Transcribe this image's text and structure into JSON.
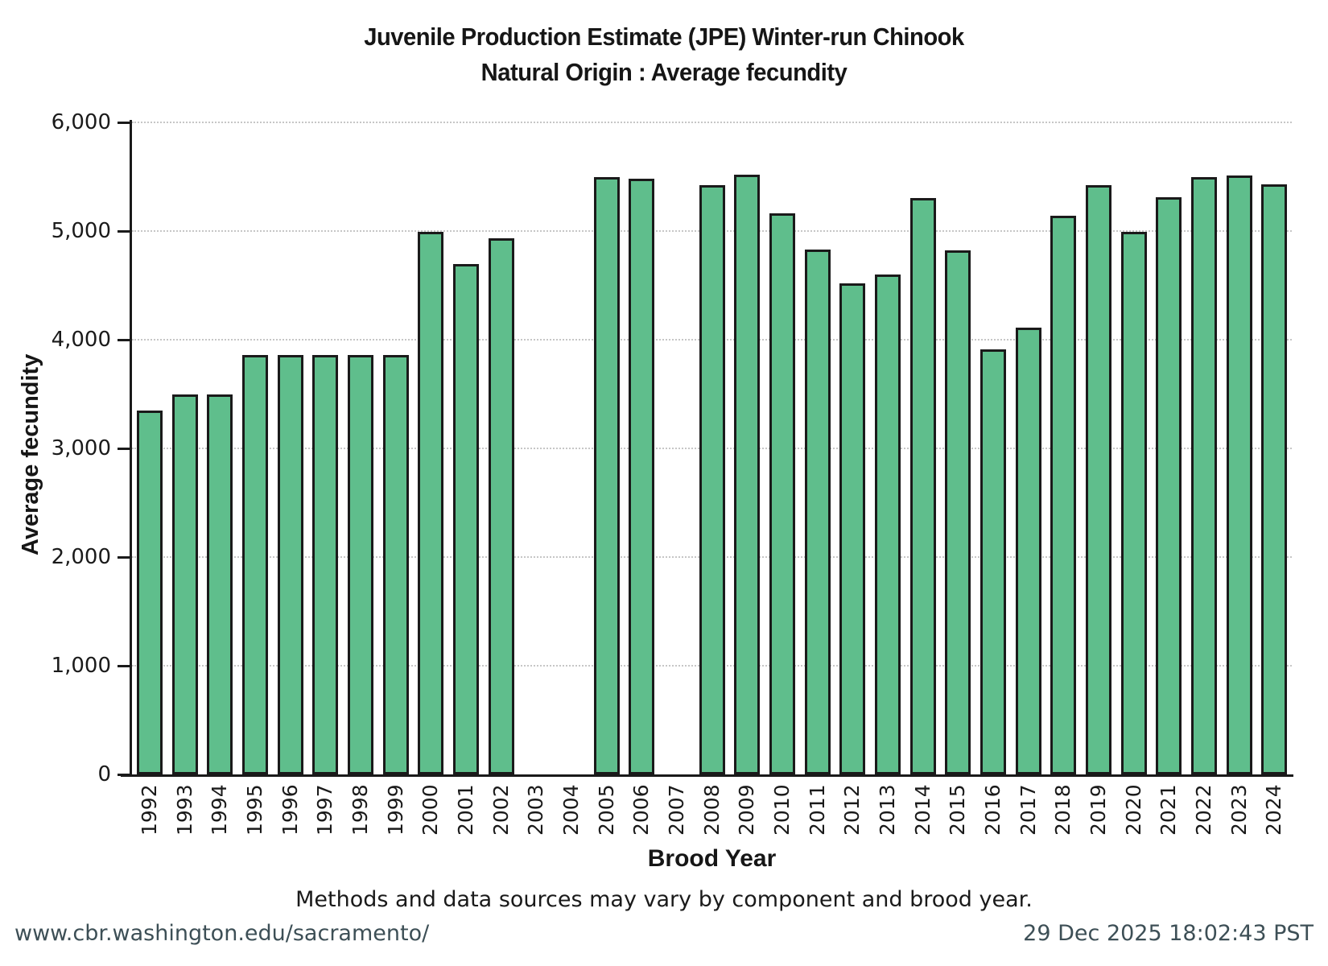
{
  "title": {
    "line1": "Juvenile Production Estimate (JPE) Winter-run Chinook",
    "line2": "Natural Origin : Average fecundity"
  },
  "chart_data": {
    "type": "bar",
    "title": "Juvenile Production Estimate (JPE) Winter-run Chinook — Natural Origin : Average fecundity",
    "xlabel": "Brood Year",
    "ylabel": "Average fecundity",
    "ylim": [
      0,
      6000
    ],
    "yticks": [
      0,
      1000,
      2000,
      3000,
      4000,
      5000,
      6000
    ],
    "ytick_labels": [
      "0",
      "1,000",
      "2,000",
      "3,000",
      "4,000",
      "5,000",
      "6,000"
    ],
    "grid": "horizontal dotted gridlines at each 1,000; y-axis and x-axis solid black; no top/right border",
    "legend": "none",
    "bar_color": "#5FBE8C",
    "bar_border_color": "#1a1a1a",
    "categories": [
      "1992",
      "1993",
      "1994",
      "1995",
      "1996",
      "1997",
      "1998",
      "1999",
      "2000",
      "2001",
      "2002",
      "2003",
      "2004",
      "2005",
      "2006",
      "2007",
      "2008",
      "2009",
      "2010",
      "2011",
      "2012",
      "2013",
      "2014",
      "2015",
      "2016",
      "2017",
      "2018",
      "2019",
      "2020",
      "2021",
      "2022",
      "2023",
      "2024"
    ],
    "values": [
      3350,
      3500,
      3500,
      3860,
      3860,
      3860,
      3860,
      3860,
      4990,
      4700,
      4930,
      null,
      null,
      5500,
      5480,
      null,
      5425,
      5520,
      5160,
      4830,
      4515,
      4600,
      5305,
      4820,
      3910,
      4110,
      5140,
      5420,
      4990,
      5310,
      5500,
      5510,
      5430
    ],
    "missing_years": [
      "2003",
      "2004",
      "2007"
    ]
  },
  "caption": "Methods and data sources may vary by component and brood year.",
  "footer": {
    "left": "www.cbr.washington.edu/sacramento/",
    "right": "29 Dec 2025 18:02:43 PST"
  }
}
